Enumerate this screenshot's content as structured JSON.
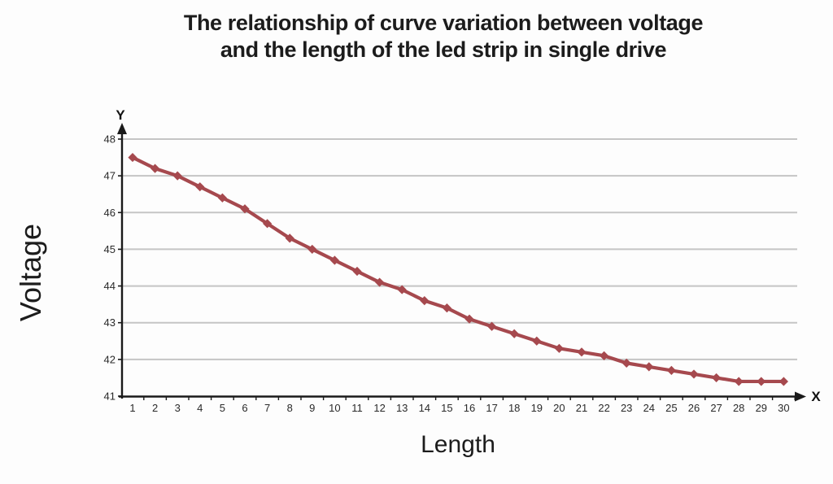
{
  "title": {
    "line1": "The relationship of curve variation between voltage",
    "line2": "and the length of the led strip in single drive"
  },
  "axes": {
    "y_label": "Voltage",
    "x_label": "Length",
    "y_axis_letter": "Y",
    "x_axis_letter": "X"
  },
  "colors": {
    "line": "#A6494E",
    "marker": "#A6494E",
    "grid": "#C5C5C5",
    "axis": "#1A1A1A",
    "tick_text": "#2A2A2A"
  },
  "chart_data": {
    "type": "line",
    "title": "The relationship of curve variation between voltage and the length of the led strip in single drive",
    "xlabel": "Length",
    "ylabel": "Voltage",
    "x": [
      1,
      2,
      3,
      4,
      5,
      6,
      7,
      8,
      9,
      10,
      11,
      12,
      13,
      14,
      15,
      16,
      17,
      18,
      19,
      20,
      21,
      22,
      23,
      24,
      25,
      26,
      27,
      28,
      29,
      30
    ],
    "y": [
      47.5,
      47.2,
      47.0,
      46.7,
      46.4,
      46.1,
      45.7,
      45.3,
      45.0,
      44.7,
      44.4,
      44.1,
      43.9,
      43.6,
      43.4,
      43.1,
      42.9,
      42.7,
      42.5,
      42.3,
      42.2,
      42.1,
      41.9,
      41.8,
      41.7,
      41.6,
      41.5,
      41.4,
      41.4,
      41.4
    ],
    "ylim": [
      41,
      48
    ],
    "xlim": [
      1,
      30
    ],
    "y_ticks": [
      41,
      42,
      43,
      44,
      45,
      46,
      47,
      48
    ],
    "x_ticks": [
      1,
      2,
      3,
      4,
      5,
      6,
      7,
      8,
      9,
      10,
      11,
      12,
      13,
      14,
      15,
      16,
      17,
      18,
      19,
      20,
      21,
      22,
      23,
      24,
      25,
      26,
      27,
      28,
      29,
      30
    ],
    "grid": true,
    "legend": false,
    "marker": "diamond"
  }
}
